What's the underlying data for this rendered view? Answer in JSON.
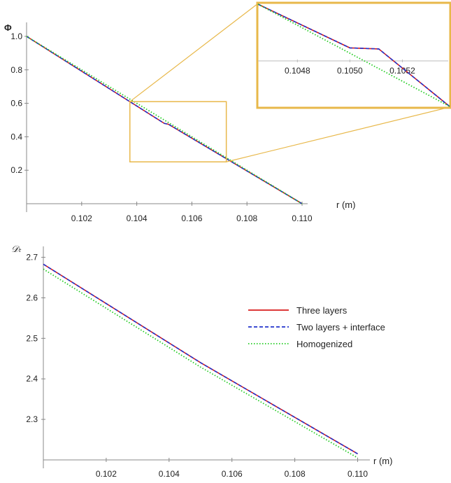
{
  "colors": {
    "three_layers": "#d81b1b",
    "two_layers": "#2233cc",
    "homogenized": "#22cc22",
    "zoom_box": "#e8b84a",
    "axis": "#888888"
  },
  "chart_data": [
    {
      "id": "phi",
      "type": "line",
      "ylabel": "Φ",
      "xlabel": "r (m)",
      "xlim": [
        0.1,
        0.11
      ],
      "ylim": [
        0,
        1.05
      ],
      "x_ticks": [
        "0.102",
        "0.104",
        "0.106",
        "0.108",
        "0.110"
      ],
      "y_ticks": [
        "0.2",
        "0.4",
        "0.6",
        "0.8",
        "1.0"
      ],
      "x_tick_values": [
        0.102,
        0.104,
        0.106,
        0.108,
        0.11
      ],
      "y_tick_values": [
        0.2,
        0.4,
        0.6,
        0.8,
        1.0
      ],
      "series": [
        {
          "key": "three_layers",
          "style": "solid",
          "x": [
            0.1,
            0.105,
            0.10515,
            0.11
          ],
          "y": [
            1.0,
            0.48,
            0.475,
            0.0
          ]
        },
        {
          "key": "two_layers",
          "style": "dashed",
          "x": [
            0.1,
            0.105,
            0.10515,
            0.11
          ],
          "y": [
            1.0,
            0.48,
            0.475,
            0.0
          ]
        },
        {
          "key": "homogenized",
          "style": "dotted",
          "x": [
            0.1,
            0.11
          ],
          "y": [
            1.0,
            0.0
          ]
        }
      ],
      "zoom_region": {
        "x": [
          0.10375,
          0.10725
        ],
        "y": [
          0.25,
          0.61
        ]
      }
    },
    {
      "id": "inset",
      "type": "line",
      "xlim": [
        0.10465,
        0.10538
      ],
      "ylim": [
        0.452,
        0.5
      ],
      "x_ticks": [
        "0.1048",
        "0.1050",
        "0.1052"
      ],
      "x_tick_values": [
        0.1048,
        0.105,
        0.1052
      ],
      "series": [
        {
          "key": "three_layers",
          "style": "solid",
          "x": [
            0.10465,
            0.105,
            0.10511,
            0.10538
          ],
          "y": [
            0.5,
            0.4795,
            0.479,
            0.452
          ]
        },
        {
          "key": "two_layers",
          "style": "dashed",
          "x": [
            0.10465,
            0.105,
            0.10511,
            0.10538
          ],
          "y": [
            0.5,
            0.4795,
            0.479,
            0.452
          ]
        },
        {
          "key": "homogenized",
          "style": "dotted",
          "x": [
            0.10465,
            0.10538
          ],
          "y": [
            0.5,
            0.452
          ]
        }
      ]
    },
    {
      "id": "dt",
      "type": "line",
      "ylabel": "𝒟ₜ",
      "xlabel": "r (m)",
      "xlim": [
        0.1,
        0.1103
      ],
      "ylim": [
        2.2,
        2.72
      ],
      "x_ticks": [
        "0.102",
        "0.104",
        "0.106",
        "0.108",
        "0.110"
      ],
      "y_ticks": [
        "2.3",
        "2.4",
        "2.5",
        "2.6",
        "2.7"
      ],
      "x_tick_values": [
        0.102,
        0.104,
        0.106,
        0.108,
        0.11
      ],
      "y_tick_values": [
        2.3,
        2.4,
        2.5,
        2.6,
        2.7
      ],
      "series": [
        {
          "name": "Three layers",
          "key": "three_layers",
          "style": "solid",
          "x": [
            0.1,
            0.105,
            0.11
          ],
          "y": [
            2.683,
            2.44,
            2.215
          ]
        },
        {
          "name": "Two layers + interface",
          "key": "two_layers",
          "style": "dashed",
          "x": [
            0.1,
            0.105,
            0.11
          ],
          "y": [
            2.683,
            2.44,
            2.215
          ]
        },
        {
          "name": "Homogenized",
          "key": "homogenized",
          "style": "dotted",
          "x": [
            0.1,
            0.105,
            0.11
          ],
          "y": [
            2.671,
            2.429,
            2.205
          ]
        }
      ],
      "legend_position": "right"
    }
  ]
}
